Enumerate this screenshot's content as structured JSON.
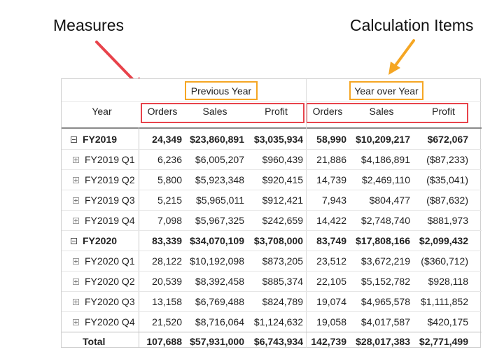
{
  "callouts": {
    "measures": "Measures",
    "calculation_items": "Calculation Items",
    "arrow_red": "#e8434b",
    "arrow_orange": "#f5a623"
  },
  "matrix": {
    "row_header": "Year",
    "groups": [
      "Previous Year",
      "Year over Year"
    ],
    "measure_columns": [
      "Orders",
      "Sales",
      "Profit"
    ],
    "rows": [
      {
        "label": "FY2019",
        "level": 0,
        "expanded": true,
        "values": [
          "24,349",
          "$23,860,891",
          "$3,035,934",
          "58,990",
          "$10,209,217",
          "$672,067"
        ]
      },
      {
        "label": "FY2019 Q1",
        "level": 1,
        "values": [
          "6,236",
          "$6,005,207",
          "$960,439",
          "21,886",
          "$4,186,891",
          "($87,233)"
        ]
      },
      {
        "label": "FY2019 Q2",
        "level": 1,
        "values": [
          "5,800",
          "$5,923,348",
          "$920,415",
          "14,739",
          "$2,469,110",
          "($35,041)"
        ]
      },
      {
        "label": "FY2019 Q3",
        "level": 1,
        "values": [
          "5,215",
          "$5,965,011",
          "$912,421",
          "7,943",
          "$804,477",
          "($87,632)"
        ]
      },
      {
        "label": "FY2019 Q4",
        "level": 1,
        "values": [
          "7,098",
          "$5,967,325",
          "$242,659",
          "14,422",
          "$2,748,740",
          "$881,973"
        ]
      },
      {
        "label": "FY2020",
        "level": 0,
        "expanded": true,
        "values": [
          "83,339",
          "$34,070,109",
          "$3,708,000",
          "83,749",
          "$17,808,166",
          "$2,099,432"
        ]
      },
      {
        "label": "FY2020 Q1",
        "level": 1,
        "values": [
          "28,122",
          "$10,192,098",
          "$873,205",
          "23,512",
          "$3,672,219",
          "($360,712)"
        ]
      },
      {
        "label": "FY2020 Q2",
        "level": 1,
        "values": [
          "20,539",
          "$8,392,458",
          "$885,374",
          "22,105",
          "$5,152,782",
          "$928,118"
        ]
      },
      {
        "label": "FY2020 Q3",
        "level": 1,
        "values": [
          "13,158",
          "$6,769,488",
          "$824,789",
          "19,074",
          "$4,965,578",
          "$1,111,852"
        ]
      },
      {
        "label": "FY2020 Q4",
        "level": 1,
        "values": [
          "21,520",
          "$8,716,064",
          "$1,124,632",
          "19,058",
          "$4,017,587",
          "$420,175"
        ]
      }
    ],
    "total": {
      "label": "Total",
      "values": [
        "107,688",
        "$57,931,000",
        "$6,743,934",
        "142,739",
        "$28,017,383",
        "$2,771,499"
      ]
    }
  }
}
